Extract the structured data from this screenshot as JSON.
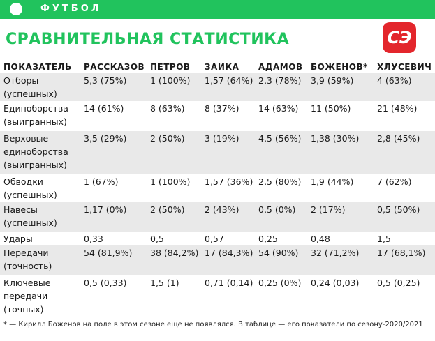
{
  "header": {
    "brand": "ФУТБОЛ",
    "title": "СРАВНИТЕЛЬНАЯ СТАТИСТИКА",
    "logo": "СЭ"
  },
  "table": {
    "columns": [
      "ПОКАЗАТЕЛЬ",
      "РАССКАЗОВ",
      "ПЕТРОВ",
      "ЗАИКА",
      "АДАМОВ",
      "БОЖЕНОВ*",
      "ХЛУСЕВИЧ"
    ],
    "rows": [
      [
        "Отборы\n(успешных)",
        "5,3 (75%)",
        "1 (100%)",
        "1,57 (64%)",
        "2,3 (78%)",
        "3,9 (59%)",
        "4 (63%)"
      ],
      [
        "Единоборства\n(выигранных)",
        "14 (61%)",
        "8 (63%)",
        "8 (37%)",
        "14 (63%)",
        "11 (50%)",
        "21 (48%)"
      ],
      [
        "Верховые\nединоборства\n(выигранных)",
        "3,5 (29%)",
        "2 (50%)",
        "3 (19%)",
        "4,5 (56%)",
        "1,38 (30%)",
        "2,8 (45%)"
      ],
      [
        "Обводки\n(успешных)",
        "1 (67%)",
        "1 (100%)",
        "1,57 (36%)",
        "2,5 (80%)",
        "1,9 (44%)",
        "7 (62%)"
      ],
      [
        "Навесы\n(успешных)",
        "1,17 (0%)",
        "2 (50%)",
        "2 (43%)",
        "0,5 (0%)",
        "2 (17%)",
        "0,5 (50%)"
      ],
      [
        "Удары",
        "0,33",
        "0,5",
        "0,57",
        "0,25",
        "0,48",
        "1,5"
      ],
      [
        "Передачи\n(точность)",
        "54 (81,9%)",
        "38 (84,2%)",
        "17 (84,3%)",
        "54 (90%)",
        "32 (71,2%)",
        "17 (68,1%)"
      ],
      [
        "Ключевые\nпередачи\n(точных)",
        "0,5 (0,33)",
        "1,5 (1)",
        "0,71 (0,14)",
        "0,25 (0%)",
        "0,24 (0,03)",
        "0,5 (0,25)"
      ]
    ]
  },
  "footnote": "* — Кирилл Боженов на поле в этом сезоне еще не появлялся. В таблице — его показатели по сезону-2020/2021"
}
